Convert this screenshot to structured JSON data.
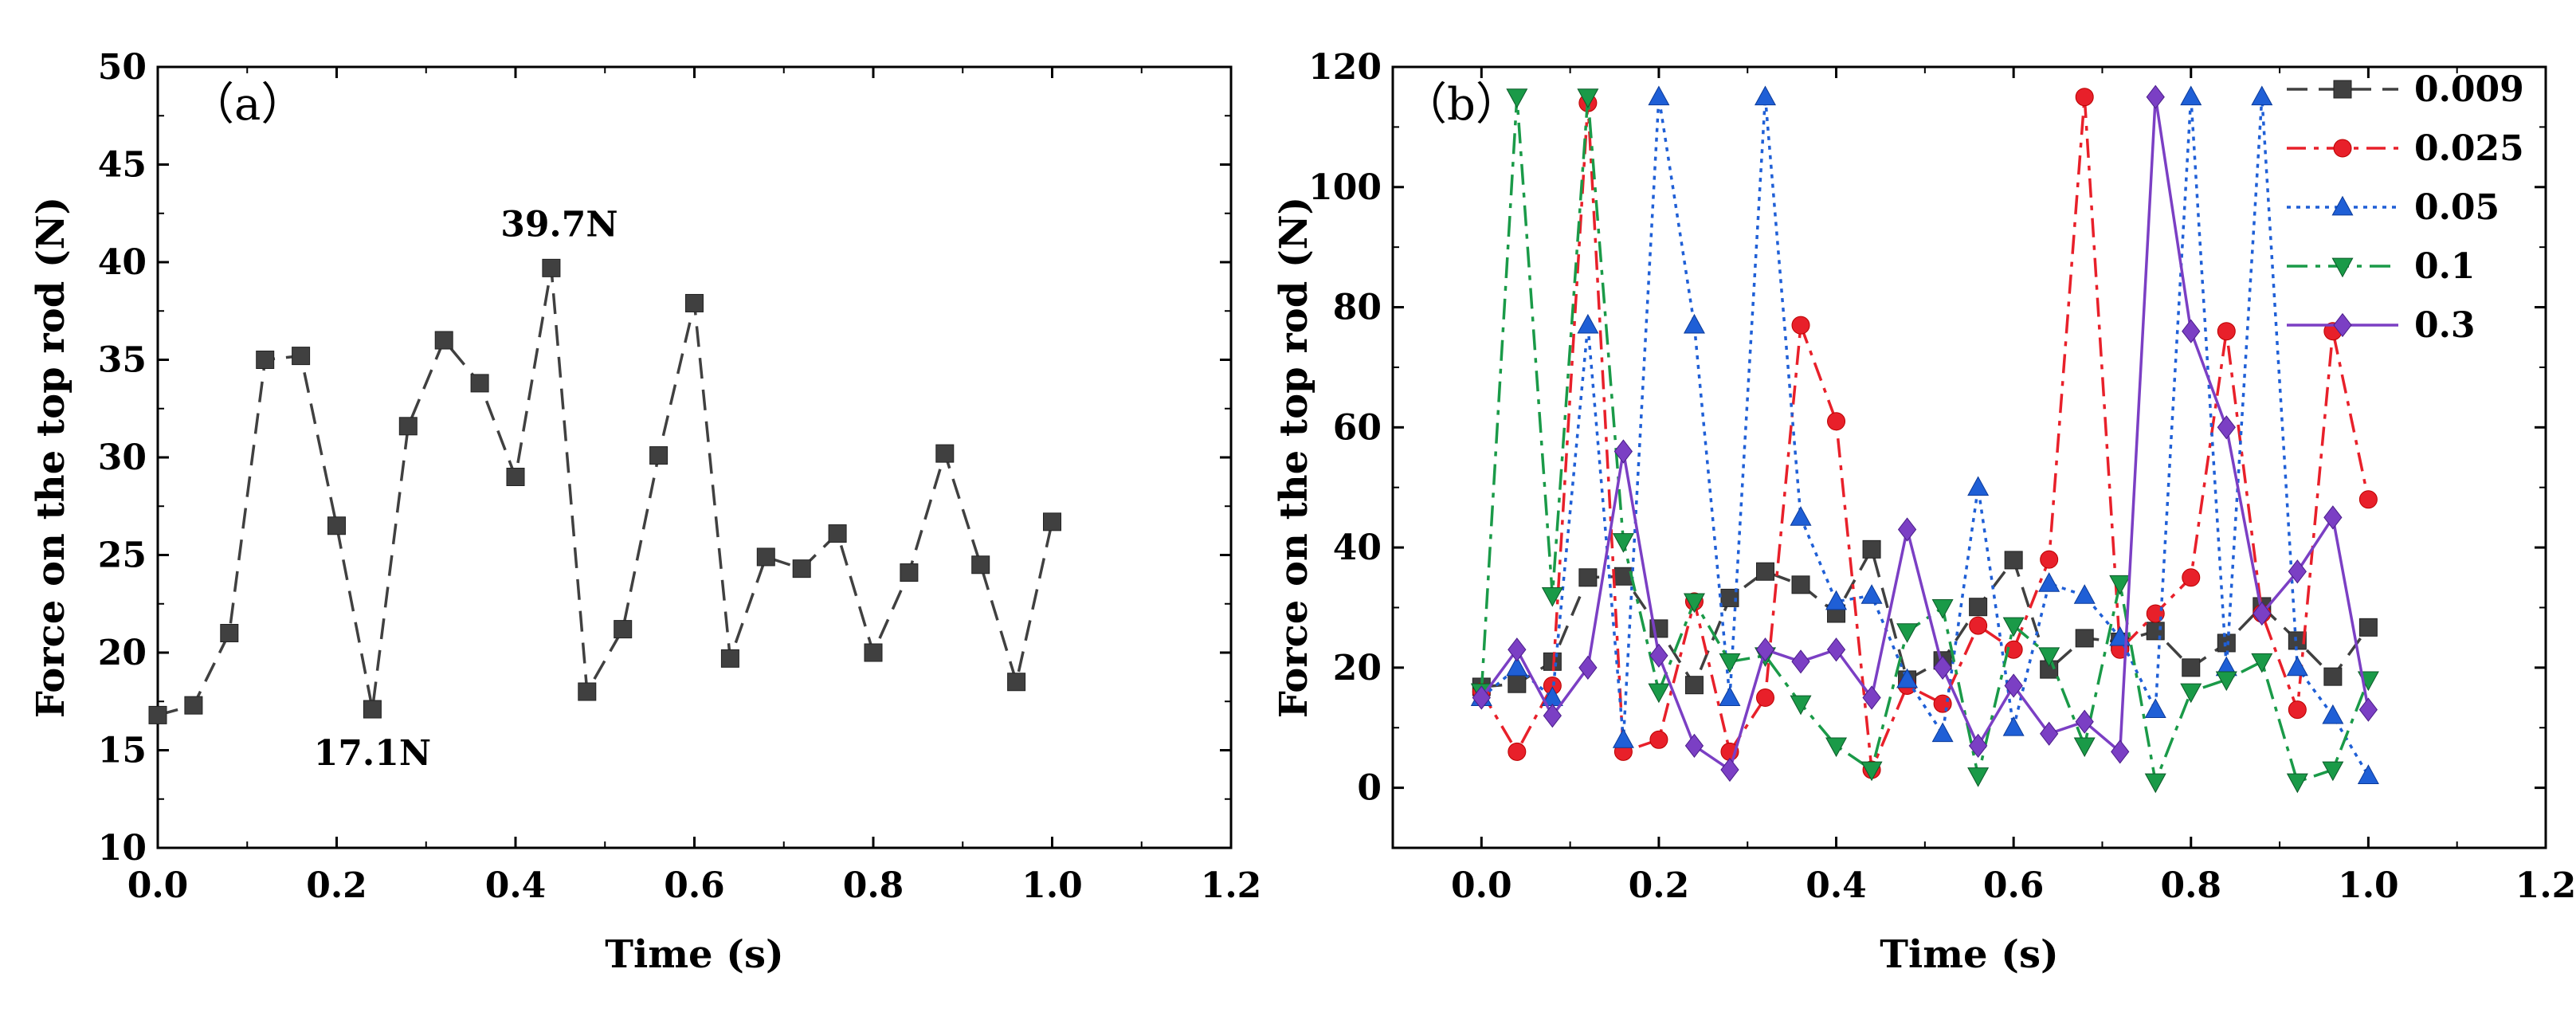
{
  "chart_data": [
    {
      "type": "line",
      "panel_label": "（a）",
      "xlabel": "Time (s)",
      "ylabel": "Force on the top rod (N)",
      "xlim": [
        0.0,
        1.2
      ],
      "ylim": [
        10,
        50
      ],
      "xticks": [
        "0.0",
        "0.2",
        "0.4",
        "0.6",
        "0.8",
        "1.0",
        "1.2"
      ],
      "yticks": [
        "10",
        "15",
        "20",
        "25",
        "30",
        "35",
        "40",
        "45",
        "50"
      ],
      "series": [
        {
          "name": "0.009",
          "color": "#404040",
          "marker": "square",
          "x": [
            0.0,
            0.04,
            0.08,
            0.12,
            0.16,
            0.2,
            0.24,
            0.28,
            0.32,
            0.36,
            0.4,
            0.44,
            0.48,
            0.52,
            0.56,
            0.6,
            0.64,
            0.68,
            0.72,
            0.76,
            0.8,
            0.84,
            0.88,
            0.92,
            0.96,
            1.0
          ],
          "y": [
            16.8,
            17.3,
            21.0,
            35.0,
            35.2,
            26.5,
            17.1,
            31.6,
            36.0,
            33.8,
            29.0,
            39.7,
            18.0,
            21.2,
            30.1,
            37.9,
            19.7,
            24.9,
            24.3,
            26.1,
            20.0,
            24.1,
            30.2,
            24.5,
            18.5,
            26.7
          ]
        }
      ],
      "annotations": [
        {
          "text": "39.7N",
          "x": 0.44,
          "y": 39.7
        },
        {
          "text": "17.1N",
          "x": 0.24,
          "y": 17.1
        }
      ]
    },
    {
      "type": "line",
      "panel_label": "（b）",
      "xlabel": "Time (s)",
      "ylabel": "Force on the top rod (N)",
      "xlim": [
        -0.1,
        1.2
      ],
      "ylim": [
        -10,
        120
      ],
      "xticks": [
        "0.0",
        "0.2",
        "0.4",
        "0.6",
        "0.8",
        "1.0",
        "1.2"
      ],
      "yticks": [
        "0",
        "20",
        "40",
        "60",
        "80",
        "100",
        "120"
      ],
      "legend_position": "top-right",
      "series": [
        {
          "name": "0.009",
          "color": "#404040",
          "marker": "square",
          "x": [
            0.0,
            0.04,
            0.08,
            0.12,
            0.16,
            0.2,
            0.24,
            0.28,
            0.32,
            0.36,
            0.4,
            0.44,
            0.48,
            0.52,
            0.56,
            0.6,
            0.64,
            0.68,
            0.72,
            0.76,
            0.8,
            0.84,
            0.88,
            0.92,
            0.96,
            1.0
          ],
          "y": [
            16.8,
            17.3,
            21.0,
            35.0,
            35.2,
            26.5,
            17.1,
            31.6,
            36.0,
            33.8,
            29.0,
            39.7,
            18.0,
            21.2,
            30.1,
            37.9,
            19.7,
            24.9,
            24.3,
            26.1,
            20.0,
            24.1,
            30.2,
            24.5,
            18.5,
            26.7
          ]
        },
        {
          "name": "0.025",
          "color": "#e8202a",
          "marker": "circle",
          "x": [
            0.0,
            0.04,
            0.08,
            0.12,
            0.16,
            0.2,
            0.24,
            0.28,
            0.32,
            0.36,
            0.4,
            0.44,
            0.48,
            0.52,
            0.56,
            0.6,
            0.64,
            0.68,
            0.72,
            0.76,
            0.8,
            0.84,
            0.88,
            0.92,
            0.96,
            1.0
          ],
          "y": [
            16,
            6,
            17,
            114,
            6,
            8,
            31,
            6,
            15,
            77,
            61,
            3,
            17,
            14,
            27,
            23,
            38,
            115,
            23,
            29,
            35,
            76,
            29,
            13,
            76,
            48
          ]
        },
        {
          "name": "0.05",
          "color": "#1f5fd6",
          "marker": "triangle-up",
          "x": [
            0.0,
            0.04,
            0.08,
            0.12,
            0.16,
            0.2,
            0.24,
            0.28,
            0.32,
            0.36,
            0.4,
            0.44,
            0.48,
            0.52,
            0.56,
            0.6,
            0.64,
            0.68,
            0.72,
            0.76,
            0.8,
            0.84,
            0.88,
            0.92,
            0.96,
            1.0
          ],
          "y": [
            15,
            20,
            15,
            77,
            8,
            115,
            77,
            15,
            115,
            45,
            31,
            32,
            18,
            9,
            50,
            10,
            34,
            32,
            25,
            13,
            115,
            20,
            115,
            20,
            12,
            2
          ]
        },
        {
          "name": "0.1",
          "color": "#1a9a48",
          "marker": "triangle-down",
          "x": [
            0.0,
            0.04,
            0.08,
            0.12,
            0.16,
            0.2,
            0.24,
            0.28,
            0.32,
            0.36,
            0.4,
            0.44,
            0.48,
            0.52,
            0.56,
            0.6,
            0.64,
            0.68,
            0.72,
            0.76,
            0.8,
            0.84,
            0.88,
            0.92,
            0.96,
            1.0
          ],
          "y": [
            16,
            115,
            32,
            115,
            41,
            16,
            31,
            21,
            22,
            14,
            7,
            3,
            26,
            30,
            2,
            27,
            22,
            7,
            34,
            1,
            16,
            18,
            21,
            1,
            3,
            18
          ]
        },
        {
          "name": "0.3",
          "color": "#7b3fc4",
          "marker": "diamond",
          "x": [
            0.0,
            0.04,
            0.08,
            0.12,
            0.16,
            0.2,
            0.24,
            0.28,
            0.32,
            0.36,
            0.4,
            0.44,
            0.48,
            0.52,
            0.56,
            0.6,
            0.64,
            0.68,
            0.72,
            0.76,
            0.8,
            0.84,
            0.88,
            0.92,
            0.96,
            1.0
          ],
          "y": [
            15,
            23,
            12,
            20,
            56,
            22,
            7,
            3,
            23,
            21,
            23,
            15,
            43,
            20,
            7,
            17,
            9,
            11,
            6,
            115,
            76,
            60,
            29,
            36,
            45,
            13
          ]
        }
      ]
    }
  ]
}
